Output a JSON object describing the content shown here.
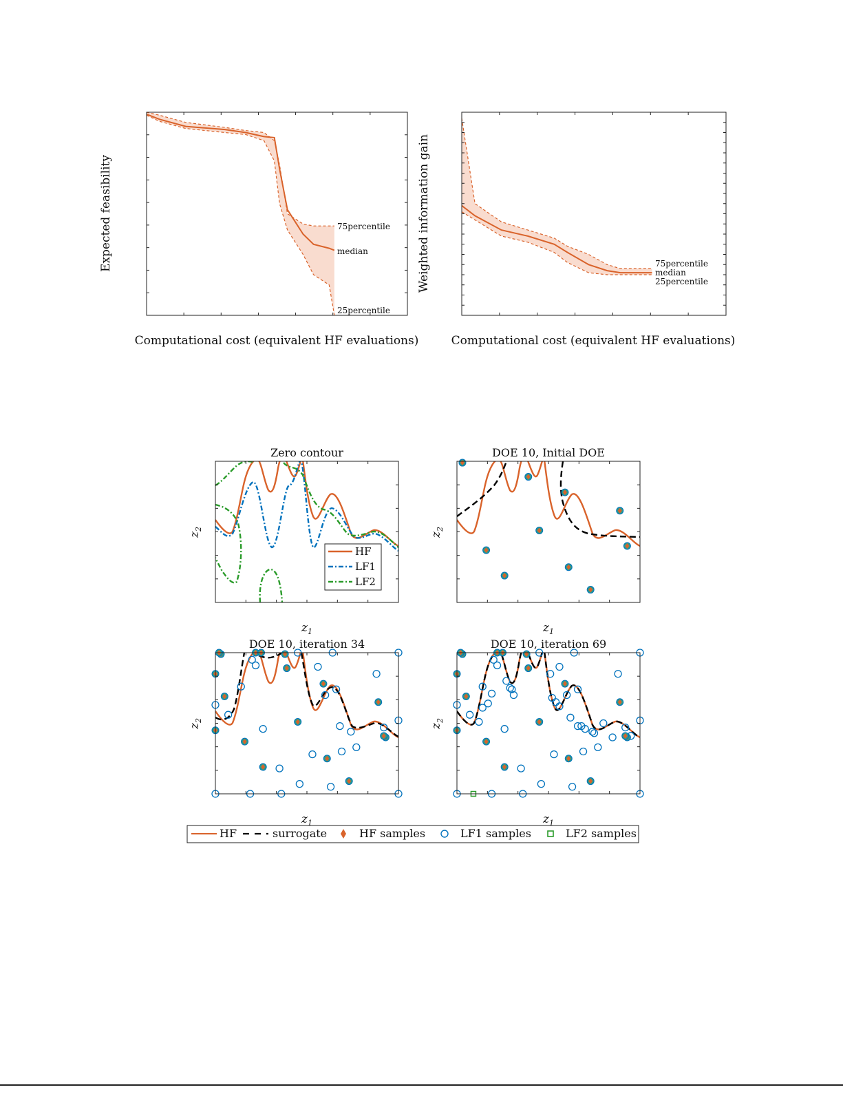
{
  "colors": {
    "hf": "#d9632b",
    "band": "#f9dccf",
    "lf1": "#0072bd",
    "lf2": "#2a9b2a",
    "surrogate": "#000000",
    "axis": "#222222"
  },
  "top_row": {
    "left": {
      "ylabel": "Expected feasibility",
      "xlabel": "Computational cost (equivalent HF evaluations)",
      "labels": {
        "p75": "75percentile",
        "median": "median",
        "p25": "25percentile"
      }
    },
    "right": {
      "ylabel": "Weighted information gain",
      "xlabel": "Computational cost (equivalent HF evaluations)",
      "labels": {
        "p75": "75percentile",
        "median": "median",
        "p25": "25percentile"
      }
    }
  },
  "bottom_grid": {
    "panels": [
      {
        "title": "Zero contour",
        "xlabel": "z",
        "xsub": "1",
        "ylabel": "z",
        "ysub": "2"
      },
      {
        "title": "DOE 10, Initial DOE",
        "xlabel": "z",
        "xsub": "1",
        "ylabel": "z",
        "ysub": "2"
      },
      {
        "title": "DOE 10, iteration 34",
        "xlabel": "z",
        "xsub": "1",
        "ylabel": "z",
        "ysub": "2"
      },
      {
        "title": "DOE 10, iteration 69",
        "xlabel": "z",
        "xsub": "1",
        "ylabel": "z",
        "ysub": "2"
      }
    ],
    "inner_legend": [
      "HF",
      "LF1",
      "LF2"
    ],
    "shared_legend": [
      "HF",
      "surrogate",
      "HF samples",
      "LF1 samples",
      "LF2 samples"
    ]
  },
  "chart_data": [
    {
      "type": "line",
      "title": "",
      "xlabel": "Computational cost (equivalent HF evaluations)",
      "ylabel": "Expected feasibility",
      "xlim": [
        0,
        1
      ],
      "ylim": [
        0,
        1
      ],
      "x": [
        0.0,
        0.05,
        0.15,
        0.3,
        0.38,
        0.45,
        0.49,
        0.51,
        0.54,
        0.6,
        0.64,
        0.7,
        0.72
      ],
      "series": [
        {
          "name": "75percentile",
          "values": [
            1.0,
            0.985,
            0.95,
            0.925,
            0.91,
            0.9,
            0.86,
            0.74,
            0.5,
            0.45,
            0.44,
            0.44,
            0.44
          ]
        },
        {
          "name": "median",
          "values": [
            0.99,
            0.965,
            0.93,
            0.915,
            0.9,
            0.88,
            0.875,
            0.72,
            0.52,
            0.4,
            0.35,
            0.33,
            0.32
          ]
        },
        {
          "name": "25percentile",
          "values": [
            0.985,
            0.955,
            0.92,
            0.9,
            0.89,
            0.86,
            0.76,
            0.55,
            0.42,
            0.3,
            0.2,
            0.15,
            0.0
          ]
        }
      ],
      "annotations": [
        "75percentile",
        "median",
        "25percentile"
      ]
    },
    {
      "type": "line",
      "title": "",
      "xlabel": "Computational cost (equivalent HF evaluations)",
      "ylabel": "Weighted information gain",
      "xlim": [
        0,
        1
      ],
      "ylim": [
        0,
        1
      ],
      "x": [
        0.0,
        0.05,
        0.15,
        0.25,
        0.35,
        0.4,
        0.48,
        0.55,
        0.6,
        0.66,
        0.72
      ],
      "series": [
        {
          "name": "75percentile",
          "values": [
            0.97,
            0.55,
            0.46,
            0.42,
            0.38,
            0.34,
            0.3,
            0.25,
            0.23,
            0.23,
            0.23
          ]
        },
        {
          "name": "median",
          "values": [
            0.54,
            0.49,
            0.42,
            0.39,
            0.35,
            0.31,
            0.25,
            0.22,
            0.21,
            0.21,
            0.21
          ]
        },
        {
          "name": "25percentile",
          "values": [
            0.51,
            0.47,
            0.39,
            0.36,
            0.31,
            0.26,
            0.21,
            0.2,
            0.2,
            0.2,
            0.2
          ]
        }
      ],
      "annotations": [
        "75percentile",
        "median",
        "25percentile"
      ]
    }
  ]
}
